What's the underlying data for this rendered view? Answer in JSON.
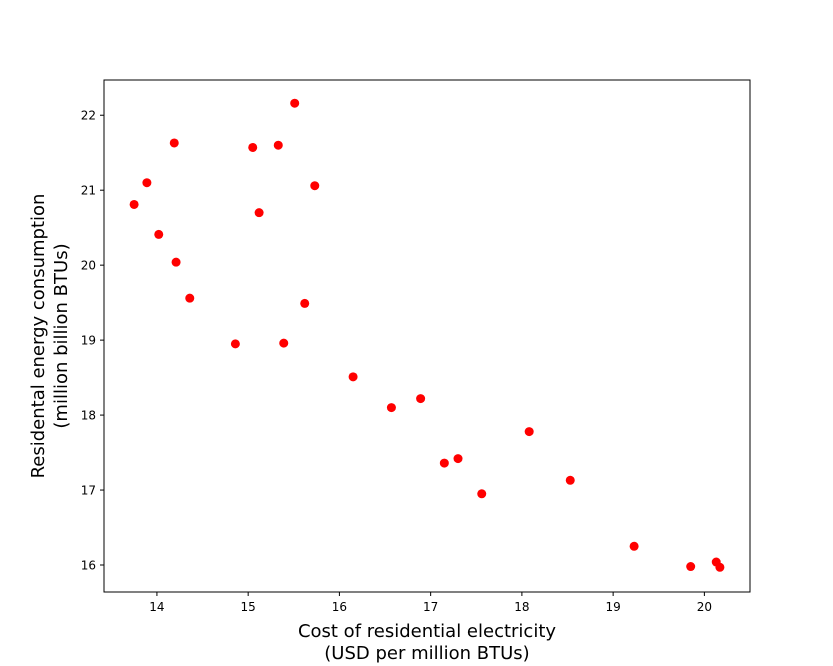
{
  "chart_data": {
    "type": "scatter",
    "xlabel_lines": [
      "Cost of residential electricity",
      "(USD per million BTUs)"
    ],
    "ylabel_lines": [
      "Residental energy consumption",
      "(million billion BTUs)"
    ],
    "xlim": [
      13.42,
      20.5
    ],
    "ylim": [
      15.64,
      22.47
    ],
    "x_ticks": [
      14,
      15,
      16,
      17,
      18,
      19,
      20
    ],
    "y_ticks": [
      16,
      17,
      18,
      19,
      20,
      21,
      22
    ],
    "grid": false,
    "legend": "none",
    "marker_color": "#ff0000",
    "points": [
      {
        "x": 13.75,
        "y": 20.81
      },
      {
        "x": 13.89,
        "y": 21.1
      },
      {
        "x": 14.02,
        "y": 20.41
      },
      {
        "x": 14.19,
        "y": 21.63
      },
      {
        "x": 14.21,
        "y": 20.04
      },
      {
        "x": 14.36,
        "y": 19.56
      },
      {
        "x": 14.86,
        "y": 18.95
      },
      {
        "x": 15.05,
        "y": 21.57
      },
      {
        "x": 15.12,
        "y": 20.7
      },
      {
        "x": 15.33,
        "y": 21.6
      },
      {
        "x": 15.39,
        "y": 18.96
      },
      {
        "x": 15.51,
        "y": 22.16
      },
      {
        "x": 15.62,
        "y": 19.49
      },
      {
        "x": 15.73,
        "y": 21.06
      },
      {
        "x": 16.15,
        "y": 18.51
      },
      {
        "x": 16.57,
        "y": 18.1
      },
      {
        "x": 16.89,
        "y": 18.22
      },
      {
        "x": 17.15,
        "y": 17.36
      },
      {
        "x": 17.3,
        "y": 17.42
      },
      {
        "x": 17.56,
        "y": 16.95
      },
      {
        "x": 18.08,
        "y": 17.78
      },
      {
        "x": 18.53,
        "y": 17.13
      },
      {
        "x": 19.23,
        "y": 16.25
      },
      {
        "x": 19.85,
        "y": 15.98
      },
      {
        "x": 20.13,
        "y": 16.04
      },
      {
        "x": 20.17,
        "y": 15.97
      }
    ]
  }
}
